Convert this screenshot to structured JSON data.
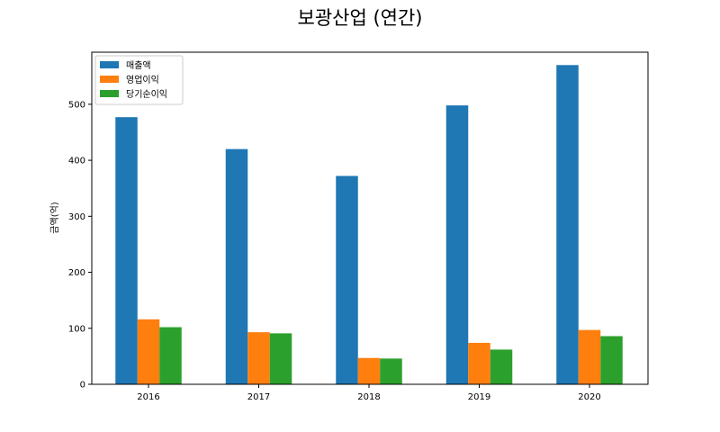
{
  "chart_data": {
    "type": "bar",
    "title": "보광산업 (연간)",
    "xlabel": "",
    "ylabel": "금액(억)",
    "categories": [
      "2016",
      "2017",
      "2018",
      "2019",
      "2020"
    ],
    "series": [
      {
        "name": "매출액",
        "color": "#1f77b4",
        "values": [
          477,
          420,
          372,
          498,
          570
        ]
      },
      {
        "name": "영업이익",
        "color": "#ff7f0e",
        "values": [
          116,
          93,
          47,
          74,
          97
        ]
      },
      {
        "name": "당기순이익",
        "color": "#2ca02c",
        "values": [
          102,
          91,
          46,
          62,
          86
        ]
      }
    ],
    "ylim": [
      0,
      593
    ],
    "yticks": [
      0,
      100,
      200,
      300,
      400,
      500
    ],
    "grid": false,
    "legend": "top-left"
  }
}
